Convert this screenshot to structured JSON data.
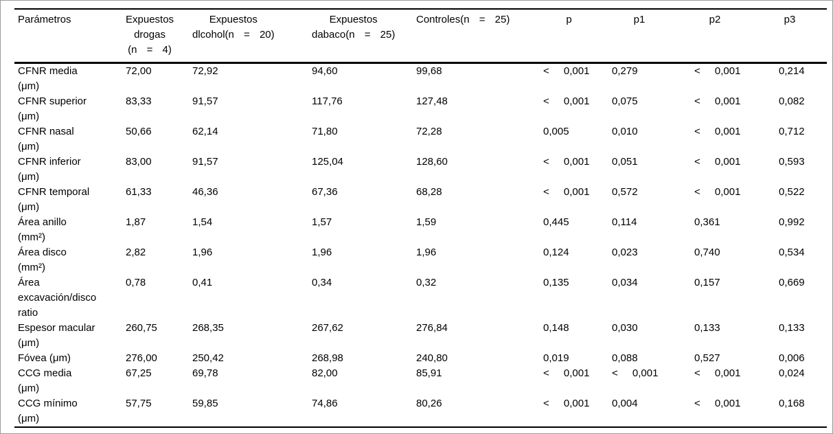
{
  "header": {
    "parametros": "Parámetros",
    "drogas": {
      "l1": "Expuestos",
      "l2": "drogas",
      "l3": "(n = 4)"
    },
    "alcohol": {
      "l1": "Expuestos",
      "l2": "dlcohol(n = 20)"
    },
    "tabaco": {
      "l1": "Expuestos",
      "l2": "dabaco(n = 25)"
    },
    "controles": "Controles(n = 25)",
    "p": "p",
    "p1": "p1",
    "p2": "p2",
    "p3": "p3"
  },
  "rows": [
    {
      "param": "CFNR media\n(μm)",
      "drogas": "72,00",
      "alcohol": "72,92",
      "tabaco": "94,60",
      "controles": "99,68",
      "p": "< 0,001",
      "p1": "0,279",
      "p2": "< 0,001",
      "p3": "0,214"
    },
    {
      "param": "CFNR superior\n(μm)",
      "drogas": "83,33",
      "alcohol": "91,57",
      "tabaco": "117,76",
      "controles": "127,48",
      "p": "< 0,001",
      "p1": "0,075",
      "p2": "< 0,001",
      "p3": "0,082"
    },
    {
      "param": "CFNR nasal\n(μm)",
      "drogas": "50,66",
      "alcohol": "62,14",
      "tabaco": "71,80",
      "controles": "72,28",
      "p": "0,005",
      "p1": "0,010",
      "p2": "< 0,001",
      "p3": "0,712"
    },
    {
      "param": "CFNR inferior\n(μm)",
      "drogas": "83,00",
      "alcohol": "91,57",
      "tabaco": "125,04",
      "controles": "128,60",
      "p": "< 0,001",
      "p1": "0,051",
      "p2": "< 0,001",
      "p3": "0,593"
    },
    {
      "param": "CFNR temporal\n(μm)",
      "drogas": "61,33",
      "alcohol": "46,36",
      "tabaco": "67,36",
      "controles": "68,28",
      "p": "< 0,001",
      "p1": "0,572",
      "p2": "< 0,001",
      "p3": "0,522"
    },
    {
      "param": "Área anillo\n(mm²)",
      "drogas": "1,87",
      "alcohol": "1,54",
      "tabaco": "1,57",
      "controles": "1,59",
      "p": "0,445",
      "p1": "0,114",
      "p2": "0,361",
      "p3": "0,992"
    },
    {
      "param": "Área disco\n(mm²)",
      "drogas": "2,82",
      "alcohol": "1,96",
      "tabaco": "1,96",
      "controles": "1,96",
      "p": "0,124",
      "p1": "0,023",
      "p2": "0,740",
      "p3": "0,534"
    },
    {
      "param": "Área\nexcavación/disco\nratio",
      "drogas": "0,78",
      "alcohol": "0,41",
      "tabaco": "0,34",
      "controles": "0,32",
      "p": "0,135",
      "p1": "0,034",
      "p2": "0,157",
      "p3": "0,669"
    },
    {
      "param": "Espesor macular\n(μm)",
      "drogas": "260,75",
      "alcohol": "268,35",
      "tabaco": "267,62",
      "controles": "276,84",
      "p": "0,148",
      "p1": "0,030",
      "p2": "0,133",
      "p3": "0,133"
    },
    {
      "param": "Fóvea (μm)",
      "drogas": "276,00",
      "alcohol": "250,42",
      "tabaco": "268,98",
      "controles": "240,80",
      "p": "0,019",
      "p1": "0,088",
      "p2": "0,527",
      "p3": "0,006"
    },
    {
      "param": "CCG media\n(μm)",
      "drogas": "67,25",
      "alcohol": "69,78",
      "tabaco": "82,00",
      "controles": "85,91",
      "p": "< 0,001",
      "p1": "< 0,001",
      "p2": "< 0,001",
      "p3": "0,024"
    },
    {
      "param": "CCG mínimo\n(μm)",
      "drogas": "57,75",
      "alcohol": "59,85",
      "tabaco": "74,86",
      "controles": "80,26",
      "p": "< 0,001",
      "p1": "0,004",
      "p2": "< 0,001",
      "p3": "0,168"
    }
  ]
}
